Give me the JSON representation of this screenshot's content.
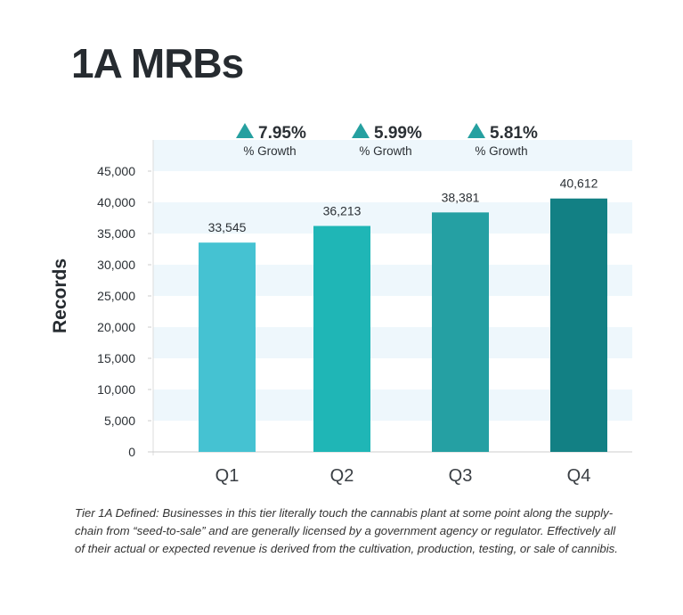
{
  "title": "1A MRBs",
  "chart_data": {
    "type": "bar",
    "categories": [
      "Q1",
      "Q2",
      "Q3",
      "Q4"
    ],
    "values": [
      33545,
      36213,
      38381,
      40612
    ],
    "data_labels": [
      "33,545",
      "36,213",
      "38,381",
      "40,612"
    ],
    "colors": [
      "#45c2d2",
      "#1fb6b6",
      "#25a0a3",
      "#128084"
    ],
    "ylabel": "Records",
    "xlabel": "",
    "ylim": [
      0,
      50000
    ],
    "yticks": [
      0,
      5000,
      10000,
      15000,
      20000,
      25000,
      30000,
      35000,
      40000,
      45000
    ],
    "ytick_labels": [
      "0",
      "5,000",
      "10,000",
      "15,000",
      "20,000",
      "25,000",
      "30,000",
      "35,000",
      "40,000",
      "45,000"
    ],
    "grid": "alternating horizontal bands",
    "band_color": "#eef7fc",
    "growth": [
      {
        "value": "7.95%",
        "label": "% Growth"
      },
      {
        "value": "5.99%",
        "label": "% Growth"
      },
      {
        "value": "5.81%",
        "label": "% Growth"
      }
    ],
    "growth_icon": "triangle-up-icon",
    "growth_color": "#26a0a0"
  },
  "note": "Tier 1A Defined: Businesses in this tier literally touch the cannabis plant at some point along the supply-chain from “seed-to-sale” and are generally licensed by a government agency or regulator. Effectively all of their actual or expected revenue is derived from the cultivation, production, testing, or sale of cannibis."
}
